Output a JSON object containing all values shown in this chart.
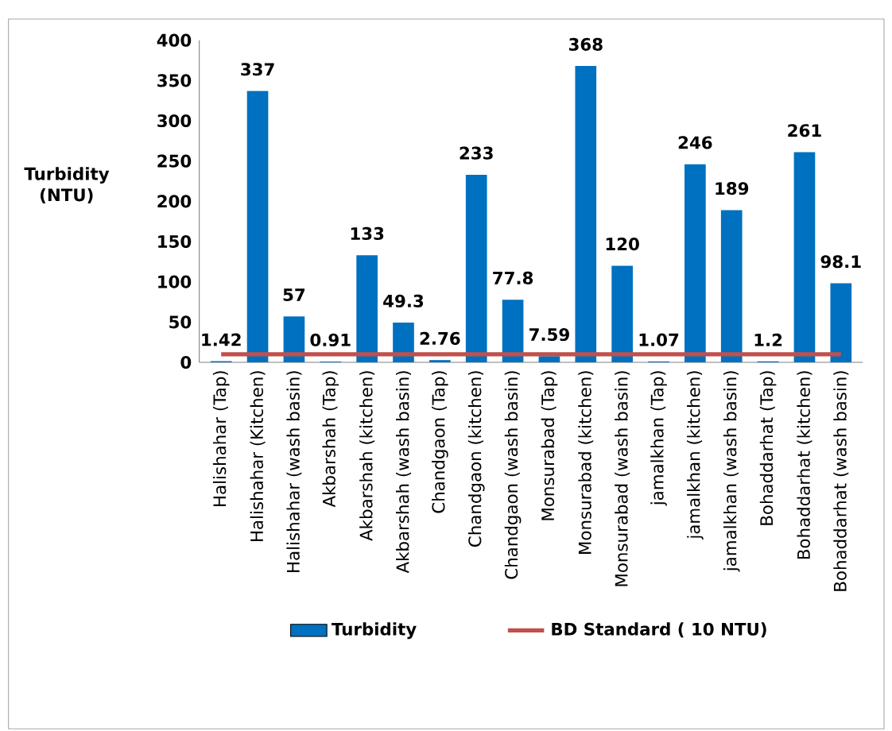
{
  "chart_data": {
    "type": "bar",
    "ylabel": "Turbidity (NTU)",
    "categories": [
      "Halishahar (Tap)",
      "Halishahar (Kitchen)",
      "Halishahar (wash basin)",
      "Akbarshah (Tap)",
      "Akbarshah (kitchen)",
      "Akbarshah (wash basin)",
      "Chandgaon (Tap)",
      "Chandgaon (kitchen)",
      "Chandgaon (wash basin)",
      "Monsurabad (Tap)",
      "Monsurabad (kitchen)",
      "Monsurabad (wash basin)",
      "jamalkhan (Tap)",
      "jamalkhan (kitchen)",
      "jamalkhan (wash basin)",
      "Bohaddarhat (Tap)",
      "Bohaddarhat (kitchen)",
      "Bohaddarhat (wash basin)"
    ],
    "series": [
      {
        "name": "Turbidity",
        "color": "#0070c0",
        "values": [
          1.42,
          337,
          57,
          0.91,
          133,
          49.3,
          2.76,
          233,
          77.8,
          7.59,
          368,
          120,
          1.07,
          246,
          189,
          1.2,
          261,
          98.1
        ],
        "value_labels": [
          "1.42",
          "337",
          "57",
          "0.91",
          "133",
          "49.3",
          "2.76",
          "233",
          "77.8",
          "7.59",
          "368",
          "120",
          "1.07",
          "246",
          "189",
          "1.2",
          "261",
          "98.1"
        ]
      },
      {
        "name": "BD Standard ( 10 NTU)",
        "type": "line",
        "color": "#c0504d",
        "values": [
          10,
          10,
          10,
          10,
          10,
          10,
          10,
          10,
          10,
          10,
          10,
          10,
          10,
          10,
          10,
          10,
          10,
          10
        ]
      }
    ],
    "ylim": [
      0,
      400
    ],
    "yticks": [
      0,
      50,
      100,
      150,
      200,
      250,
      300,
      350,
      400
    ],
    "grid": false,
    "legend": "bottom"
  }
}
